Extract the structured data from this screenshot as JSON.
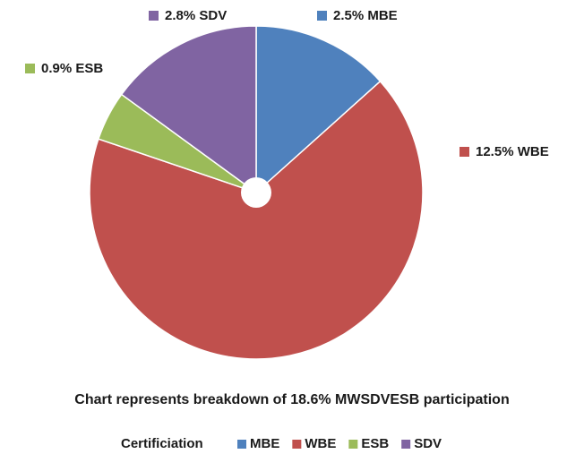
{
  "chart_data": {
    "type": "pie",
    "categories": [
      "MBE",
      "WBE",
      "ESB",
      "SDV"
    ],
    "values": [
      2.5,
      12.5,
      0.9,
      2.8
    ],
    "value_labels": [
      "2.5% MBE",
      "12.5% WBE",
      "0.9% ESB",
      "2.8% SDV"
    ],
    "colors": [
      "#4f81bd",
      "#c0504d",
      "#9bbb59",
      "#8064a2"
    ],
    "caption": "Chart represents breakdown of 18.6% MWSDVESB participation",
    "legend_title": "Certificiation",
    "legend": "bottom"
  }
}
